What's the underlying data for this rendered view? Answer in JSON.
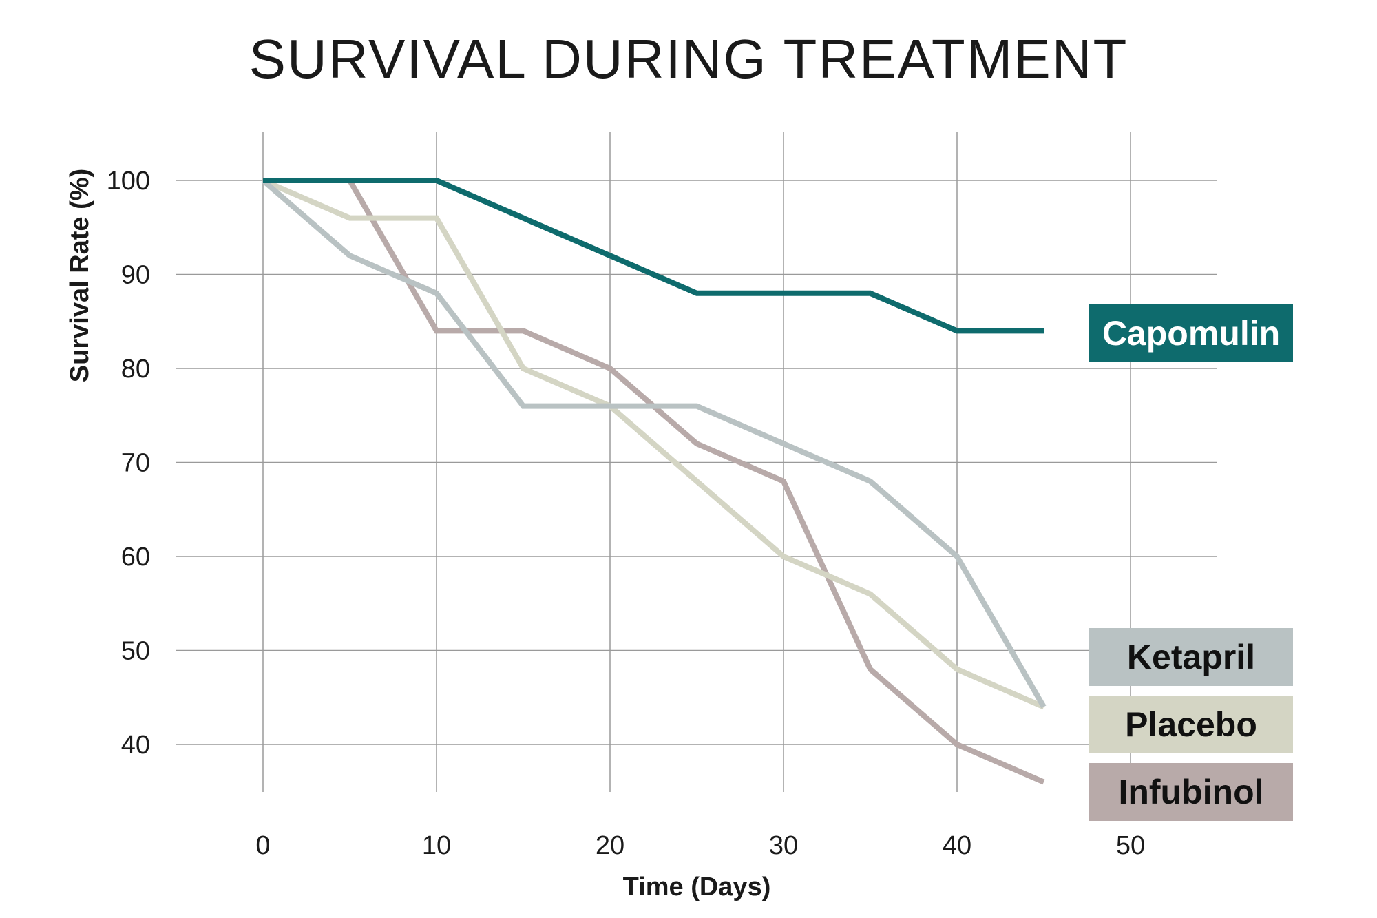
{
  "chart_data": {
    "type": "line",
    "title": "SURVIVAL DURING TREATMENT",
    "xlabel": "Time (Days)",
    "ylabel": "Survival Rate (%)",
    "xlim": [
      -10,
      60
    ],
    "ylim": [
      35,
      105
    ],
    "xticks": [
      0,
      10,
      20,
      30,
      40,
      50
    ],
    "yticks": [
      40,
      50,
      60,
      70,
      80,
      90,
      100
    ],
    "grid": true,
    "legend": "right (labels at line ends)",
    "series": [
      {
        "name": "Capomulin",
        "color": "#0e6b6d",
        "text_color": "#ffffff",
        "x": [
          0,
          5,
          10,
          15,
          20,
          25,
          30,
          35,
          40,
          45
        ],
        "y": [
          100,
          100,
          100,
          96,
          92,
          88,
          88,
          88,
          84,
          84
        ]
      },
      {
        "name": "Ketapril",
        "color": "#b9c2c3",
        "text_color": "#111111",
        "x": [
          0,
          5,
          10,
          15,
          20,
          25,
          30,
          35,
          40,
          45
        ],
        "y": [
          100,
          92,
          88,
          76,
          76,
          76,
          72,
          68,
          60,
          44
        ]
      },
      {
        "name": "Placebo",
        "color": "#d4d5c4",
        "text_color": "#111111",
        "x": [
          0,
          5,
          10,
          15,
          20,
          25,
          30,
          35,
          40,
          45
        ],
        "y": [
          100,
          96,
          96,
          80,
          76,
          68,
          60,
          56,
          48,
          44
        ]
      },
      {
        "name": "Infubinol",
        "color": "#b8aaa9",
        "text_color": "#111111",
        "x": [
          0,
          5,
          10,
          15,
          20,
          25,
          30,
          35,
          40,
          45
        ],
        "y": [
          100,
          100,
          84,
          84,
          80,
          72,
          68,
          48,
          40,
          36
        ]
      }
    ]
  }
}
